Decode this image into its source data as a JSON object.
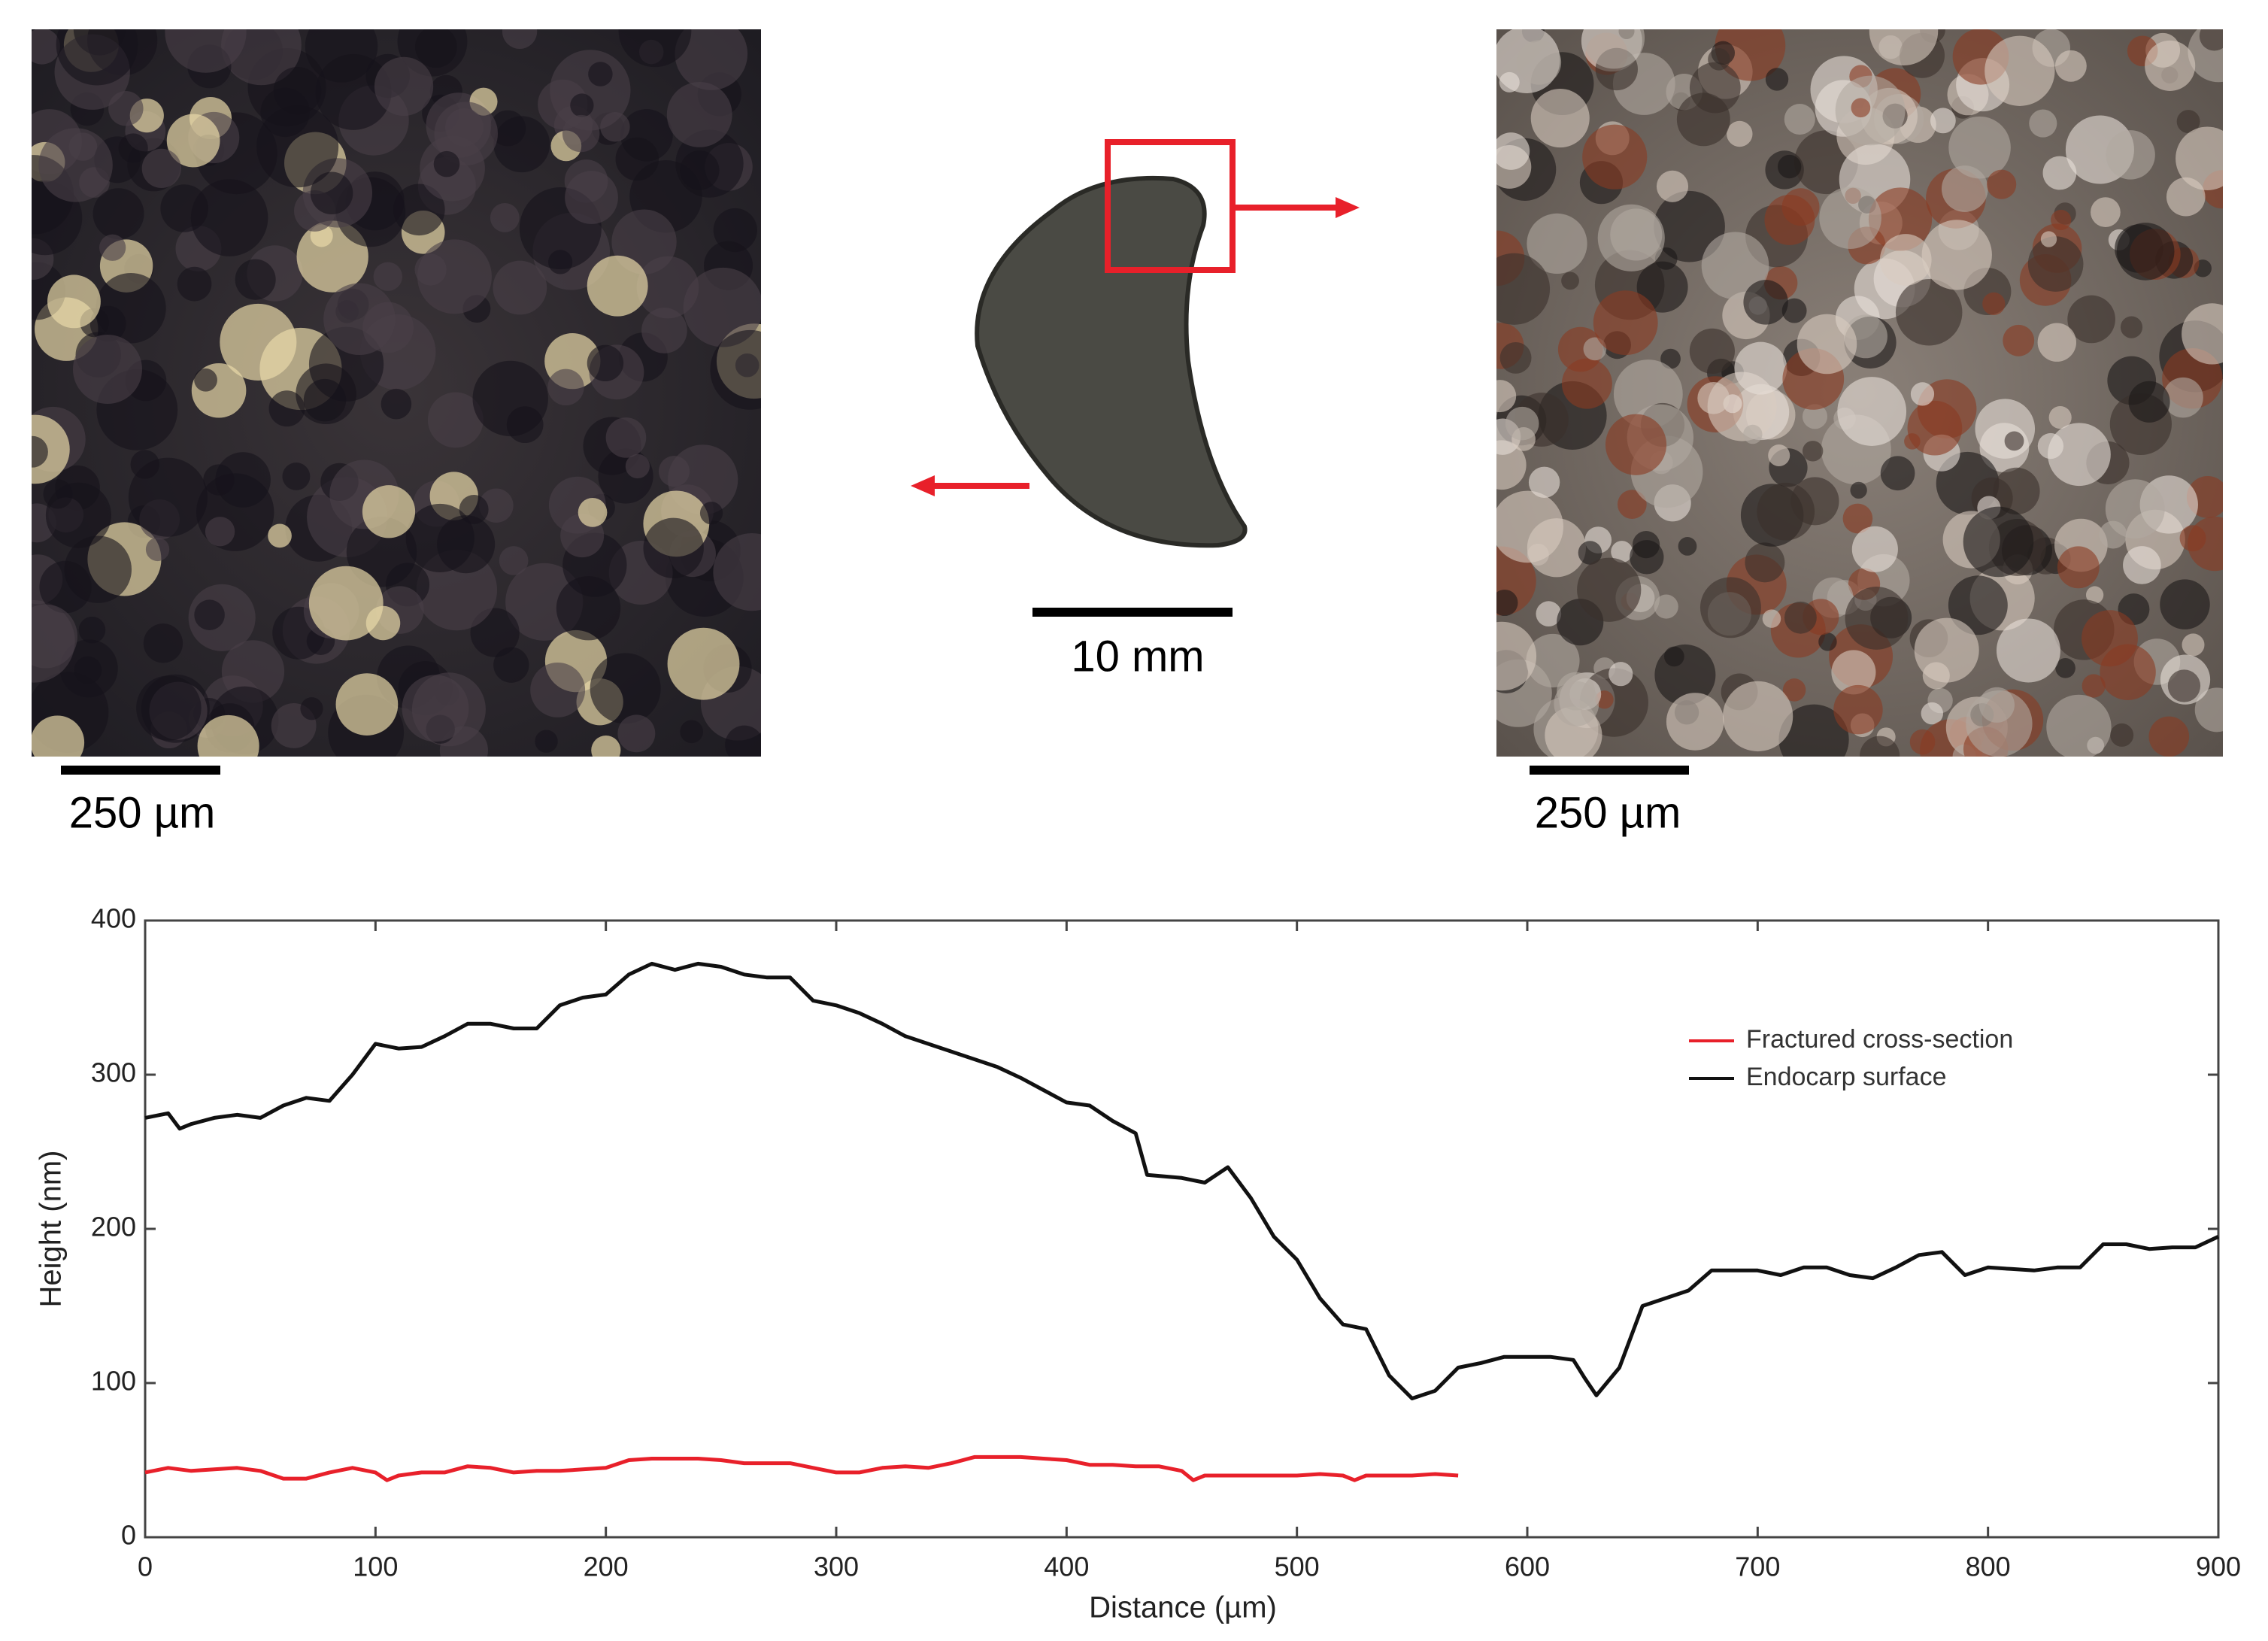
{
  "figure": {
    "left_scale": "250 µm",
    "center_scale": "10 mm",
    "right_scale": "250 µm"
  },
  "chart_data": {
    "type": "line",
    "xlabel": "Distance (µm)",
    "ylabel": "Height (nm)",
    "xlim": [
      0,
      900
    ],
    "ylim": [
      0,
      400
    ],
    "xticks": [
      0,
      100,
      200,
      300,
      400,
      500,
      600,
      700,
      800,
      900
    ],
    "yticks": [
      0,
      100,
      200,
      300,
      400
    ],
    "legend": "upper right",
    "series": [
      {
        "name": "Fractured cross-section",
        "color": "#e8202a",
        "x": [
          0,
          10,
          20,
          30,
          40,
          50,
          60,
          70,
          80,
          90,
          100,
          105,
          110,
          120,
          130,
          140,
          150,
          160,
          170,
          180,
          190,
          200,
          210,
          220,
          230,
          240,
          250,
          260,
          270,
          280,
          290,
          300,
          310,
          320,
          330,
          340,
          350,
          360,
          370,
          380,
          390,
          400,
          410,
          420,
          430,
          440,
          450,
          455,
          460,
          470,
          480,
          490,
          500,
          510,
          520,
          525,
          530,
          540,
          550,
          560,
          570
        ],
        "values": [
          42,
          45,
          43,
          44,
          45,
          43,
          38,
          38,
          42,
          45,
          42,
          37,
          40,
          42,
          42,
          46,
          45,
          42,
          43,
          43,
          44,
          45,
          50,
          51,
          51,
          51,
          50,
          48,
          48,
          48,
          45,
          42,
          42,
          45,
          46,
          45,
          48,
          52,
          52,
          52,
          51,
          50,
          47,
          47,
          46,
          46,
          43,
          37,
          40,
          40,
          40,
          40,
          40,
          41,
          40,
          37,
          40,
          40,
          40,
          41,
          40
        ]
      },
      {
        "name": "Endocarp surface",
        "color": "#111111",
        "x": [
          0,
          10,
          15,
          20,
          30,
          40,
          50,
          60,
          70,
          80,
          90,
          100,
          110,
          120,
          130,
          140,
          150,
          160,
          170,
          180,
          190,
          200,
          210,
          220,
          230,
          240,
          250,
          260,
          270,
          280,
          290,
          300,
          310,
          320,
          330,
          340,
          350,
          360,
          370,
          380,
          390,
          400,
          410,
          420,
          430,
          435,
          450,
          460,
          470,
          480,
          490,
          500,
          510,
          520,
          530,
          540,
          550,
          560,
          570,
          580,
          590,
          600,
          610,
          620,
          625,
          630,
          640,
          650,
          660,
          670,
          680,
          690,
          700,
          710,
          720,
          730,
          740,
          750,
          760,
          770,
          780,
          790,
          800,
          810,
          820,
          830,
          840,
          850,
          860,
          870,
          880,
          890,
          900
        ],
        "values": [
          272,
          275,
          265,
          268,
          272,
          274,
          272,
          280,
          285,
          283,
          300,
          320,
          317,
          318,
          325,
          333,
          333,
          330,
          330,
          345,
          350,
          352,
          365,
          372,
          368,
          372,
          370,
          365,
          363,
          363,
          348,
          345,
          340,
          333,
          325,
          320,
          315,
          310,
          305,
          298,
          290,
          282,
          280,
          270,
          262,
          235,
          233,
          230,
          240,
          220,
          195,
          180,
          155,
          138,
          135,
          105,
          90,
          95,
          110,
          113,
          117,
          117,
          117,
          115,
          103,
          92,
          110,
          150,
          155,
          160,
          173,
          173,
          173,
          170,
          175,
          175,
          170,
          168,
          175,
          183,
          185,
          170,
          175,
          174,
          173,
          175,
          175,
          190,
          190,
          187,
          188,
          188,
          195
        ]
      }
    ]
  }
}
